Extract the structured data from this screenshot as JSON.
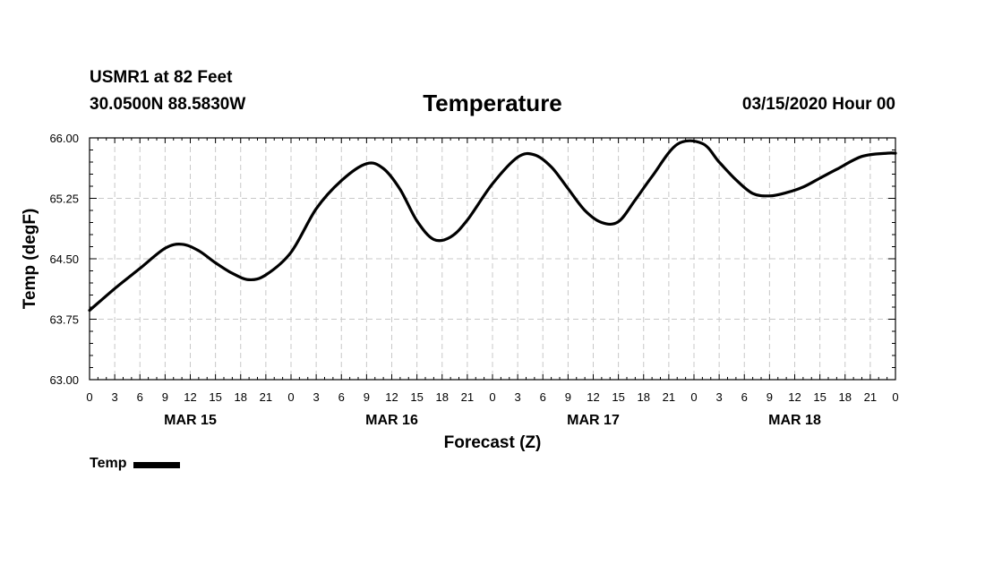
{
  "header": {
    "station": "USMR1 at 82 Feet",
    "coords": "30.0500N 88.5830W",
    "title": "Temperature",
    "date": "03/15/2020 Hour 00"
  },
  "legend": {
    "label": "Temp",
    "color": "#000000"
  },
  "chart_data": {
    "type": "line",
    "title": "Temperature",
    "xlabel": "Forecast (Z)",
    "ylabel": "Temp (degF)",
    "ylim": [
      63.0,
      66.0
    ],
    "xlim": [
      0,
      96
    ],
    "x_unit": "hours since 03/15/2020 00Z",
    "y_ticks": [
      "63.00",
      "63.75",
      "64.50",
      "65.25",
      "66.00"
    ],
    "x_tick_step": 3,
    "x_ticks": [
      "0",
      "3",
      "6",
      "9",
      "12",
      "15",
      "18",
      "21",
      "0",
      "3",
      "6",
      "9",
      "12",
      "15",
      "18",
      "21",
      "0",
      "3",
      "6",
      "9",
      "12",
      "15",
      "18",
      "21",
      "0",
      "3",
      "6",
      "9",
      "12",
      "15",
      "18",
      "21",
      "0"
    ],
    "day_labels": [
      {
        "label": "MAR 15",
        "hour": 12
      },
      {
        "label": "MAR 16",
        "hour": 36
      },
      {
        "label": "MAR 17",
        "hour": 60
      },
      {
        "label": "MAR 18",
        "hour": 84
      }
    ],
    "grid": true,
    "series": [
      {
        "name": "Temp",
        "color": "#000000",
        "x": [
          0,
          3,
          6,
          9,
          11,
          13,
          15,
          17,
          19,
          21,
          24,
          27,
          30,
          33,
          35,
          37,
          39,
          41,
          43,
          45,
          48,
          51,
          53,
          55,
          57,
          59,
          61,
          63,
          65,
          67,
          70,
          73,
          75,
          77,
          79,
          81,
          83,
          85,
          87,
          89,
          92,
          95,
          96
        ],
        "values": [
          63.86,
          64.13,
          64.38,
          64.63,
          64.68,
          64.6,
          64.45,
          64.32,
          64.24,
          64.3,
          64.58,
          65.12,
          65.47,
          65.68,
          65.62,
          65.36,
          64.97,
          64.74,
          64.77,
          64.98,
          65.43,
          65.76,
          65.79,
          65.64,
          65.37,
          65.1,
          64.95,
          64.96,
          65.23,
          65.52,
          65.92,
          65.93,
          65.7,
          65.48,
          65.31,
          65.28,
          65.32,
          65.39,
          65.5,
          65.61,
          65.77,
          65.81,
          65.81
        ]
      }
    ]
  }
}
